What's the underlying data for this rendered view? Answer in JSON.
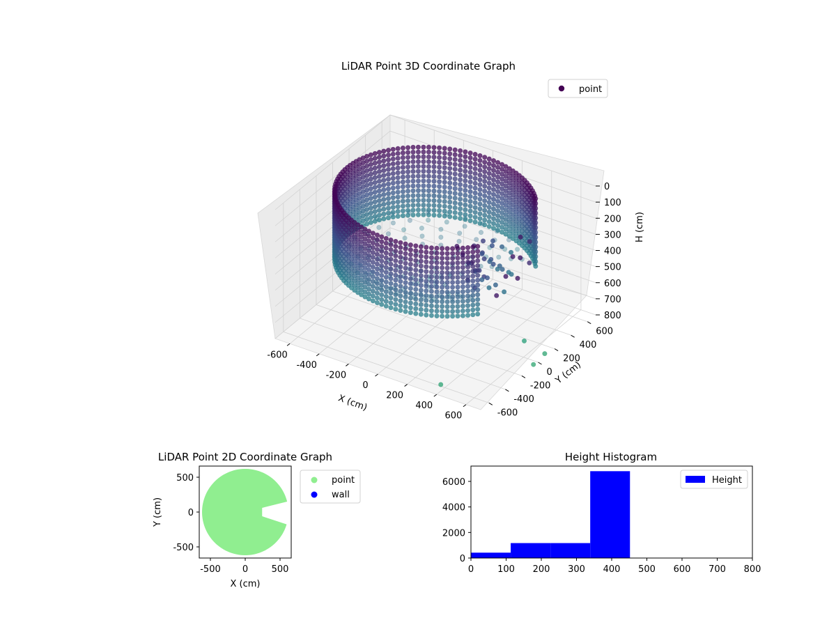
{
  "chart_data": [
    {
      "type": "scatter",
      "title": "LiDAR Point 3D Coordinate Graph",
      "xlabel": "X (cm)",
      "ylabel": "Y (cm)",
      "zlabel": "H (cm)",
      "xlim": [
        -700,
        700
      ],
      "ylim": [
        -700,
        700
      ],
      "zlim": [
        800,
        0
      ],
      "x_ticks": [
        -600,
        -400,
        -200,
        0,
        200,
        400,
        600
      ],
      "y_ticks": [
        -600,
        -400,
        -200,
        0,
        200,
        400,
        600
      ],
      "z_ticks": [
        0,
        100,
        200,
        300,
        400,
        500,
        600,
        700,
        800
      ],
      "grid": true,
      "legend": [
        "point"
      ],
      "legend_position": "top-right",
      "colormap": "viridis",
      "wall": {
        "radius": 600,
        "h_top": 0,
        "h_bottom": 420,
        "gap_from_deg": -35,
        "gap_to_deg": 35
      },
      "floor_fill": {
        "radius": 560,
        "h_min": 250,
        "h_max": 480
      },
      "outliers": [
        {
          "x": 650,
          "y": -80,
          "h": 650
        },
        {
          "x": 700,
          "y": 80,
          "h": 780
        },
        {
          "x": 690,
          "y": -40,
          "h": 800
        },
        {
          "x": 400,
          "y": -650,
          "h": 760
        }
      ]
    },
    {
      "type": "scatter",
      "title": "LiDAR Point 2D Coordinate Graph",
      "xlabel": "X (cm)",
      "ylabel": "Y (cm)",
      "xlim": [
        -660,
        660
      ],
      "ylim": [
        -660,
        660
      ],
      "x_ticks": [
        -500,
        0,
        500
      ],
      "y_ticks": [
        -500,
        0,
        500
      ],
      "series": [
        {
          "name": "point",
          "color": "#90ee90"
        },
        {
          "name": "wall",
          "color": "#0000ff"
        }
      ],
      "point_cloud": {
        "radius": 620,
        "gap_from_deg": -14,
        "gap_to_deg": 14,
        "gap_inner_radius": 250
      },
      "legend_position": "outside-right"
    },
    {
      "type": "bar",
      "title": "Height Histogram",
      "xlabel": "",
      "ylabel": "",
      "xlim": [
        0,
        800
      ],
      "ylim": [
        0,
        7200
      ],
      "x_ticks": [
        0,
        100,
        200,
        300,
        400,
        500,
        600,
        700,
        800
      ],
      "y_ticks": [
        0,
        2000,
        4000,
        6000
      ],
      "bins": [
        {
          "from": 0,
          "to": 113,
          "count": 420
        },
        {
          "from": 113,
          "to": 226,
          "count": 1170
        },
        {
          "from": 226,
          "to": 339,
          "count": 1170
        },
        {
          "from": 339,
          "to": 452,
          "count": 6800
        },
        {
          "from": 452,
          "to": 565,
          "count": 0
        },
        {
          "from": 565,
          "to": 678,
          "count": 0
        },
        {
          "from": 678,
          "to": 791,
          "count": 0
        }
      ],
      "series": [
        {
          "name": "Height",
          "color": "#0000ff"
        }
      ],
      "legend_position": "top-right"
    }
  ]
}
